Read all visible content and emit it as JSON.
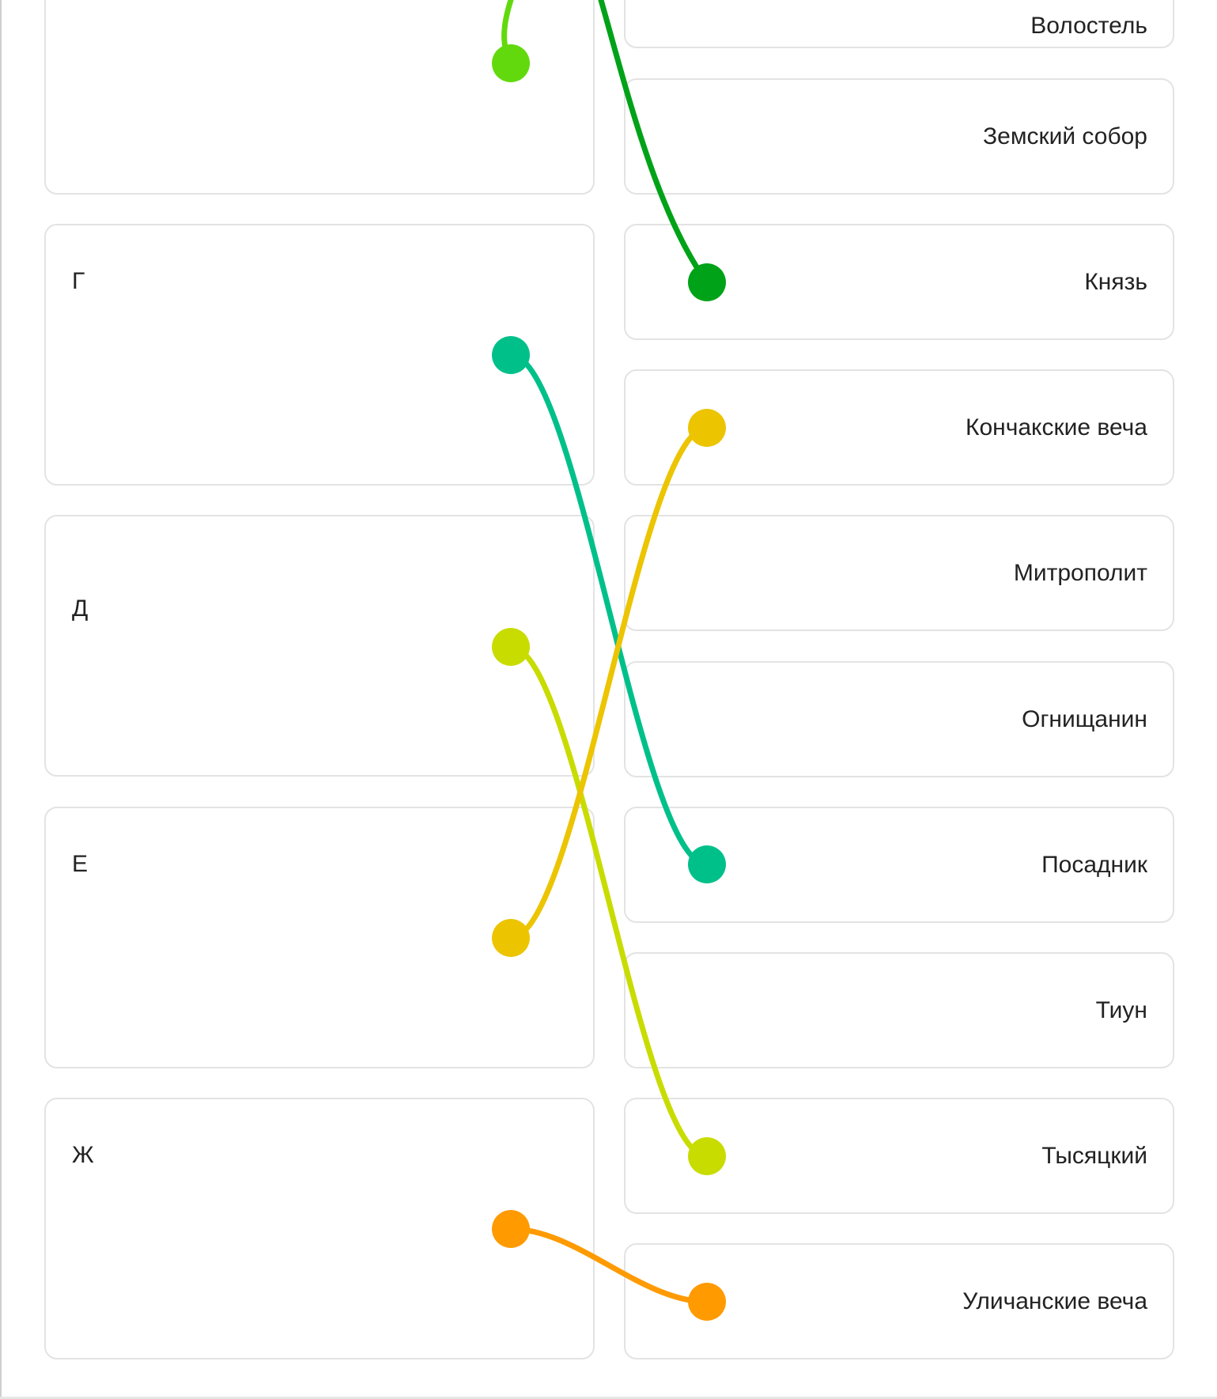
{
  "left_items": [
    {
      "label": ""
    },
    {
      "label": "Г"
    },
    {
      "label": "Д"
    },
    {
      "label": "Е"
    },
    {
      "label": "Ж"
    }
  ],
  "right_items": [
    {
      "label": "Волостель"
    },
    {
      "label": "Земский собор"
    },
    {
      "label": "Князь"
    },
    {
      "label": "Кончакские веча"
    },
    {
      "label": "Митрополит"
    },
    {
      "label": "Огнищанин"
    },
    {
      "label": "Посадник"
    },
    {
      "label": "Тиун"
    },
    {
      "label": "Тысяцкий"
    },
    {
      "label": "Уличанские веча"
    }
  ],
  "connections": [
    {
      "from": "offscreen-top",
      "to": "left-0",
      "color": "#62d90d"
    },
    {
      "from": "offscreen-top",
      "to": "right-2",
      "color": "#00a218"
    },
    {
      "from": "left-1",
      "to": "right-6",
      "color": "#00c08a"
    },
    {
      "from": "left-2",
      "to": "right-8",
      "color": "#c8dc00"
    },
    {
      "from": "left-3",
      "to": "right-3",
      "color": "#ecc400"
    },
    {
      "from": "left-4",
      "to": "right-9",
      "color": "#ff9a00"
    }
  ]
}
